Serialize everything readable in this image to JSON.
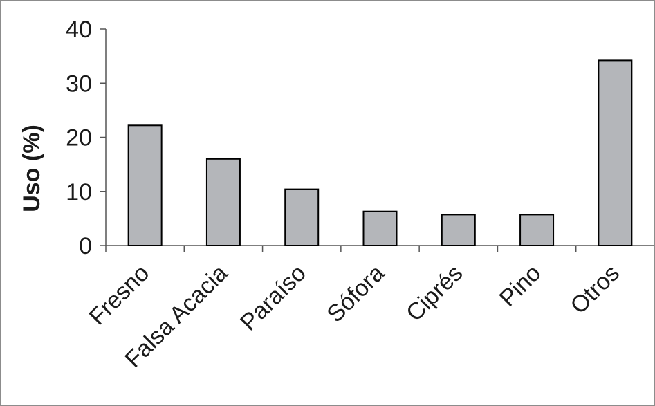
{
  "chart_data": {
    "type": "bar",
    "categories": [
      "Fresno",
      "Falsa Acacia",
      "Paraíso",
      "Sófora",
      "Ciprés",
      "Pino",
      "Otros"
    ],
    "values": [
      22.2,
      16.0,
      10.4,
      6.3,
      5.7,
      5.7,
      34.2
    ],
    "title": "",
    "xlabel": "",
    "ylabel": "Uso (%)",
    "ylim": [
      0,
      40
    ],
    "yticks": [
      0,
      10,
      20,
      30,
      40
    ],
    "grid": false,
    "bar_color": "#b4b6ba",
    "bar_edge_color": "#000000"
  }
}
